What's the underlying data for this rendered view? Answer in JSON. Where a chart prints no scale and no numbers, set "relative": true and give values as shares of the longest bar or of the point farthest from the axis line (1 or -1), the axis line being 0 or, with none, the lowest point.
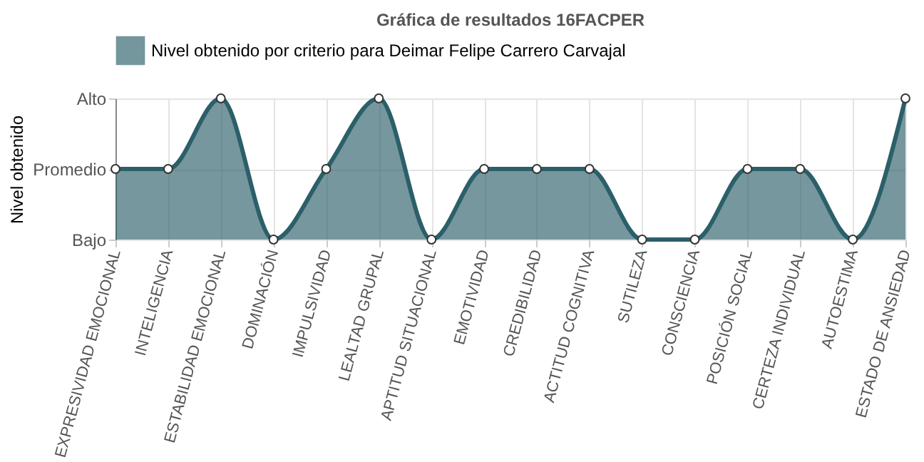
{
  "chart_data": {
    "type": "area",
    "title": "Gráfica de resultados 16FACPER",
    "ylabel": "Nivel obtenido",
    "categories": [
      "EXPRESIVIDAD EMOCIONAL",
      "INTELIGENCIA",
      "ESTABILIDAD EMOCIONAL",
      "DOMINACIÓN",
      "IMPULSIVIDAD",
      "LEALTAD GRUPAL",
      "APTITUD SITUACIONAL",
      "EMOTIVIDAD",
      "CREDIBILIDAD",
      "ACTITUD COGNITIVA",
      "SUTILEZA",
      "CONSCIENCIA",
      "POSICIÓN SOCIAL",
      "CERTEZA INDIVIDUAL",
      "AUTOESTIMA",
      "ESTADO DE ANSIEDAD"
    ],
    "y_categories": [
      "Alto",
      "Promedio",
      "Bajo"
    ],
    "relative": true,
    "series": [
      {
        "name": "Nivel obtenido por criterio para Deimar Felipe Carrero Carvajal",
        "color": "#2b5f69",
        "values": [
          0.5,
          0.5,
          1,
          0,
          0.5,
          1,
          0,
          0.5,
          0.5,
          0.5,
          0,
          0,
          0.5,
          0.5,
          0,
          1
        ]
      }
    ],
    "grid": true,
    "legend": "top",
    "marker": "circle"
  }
}
